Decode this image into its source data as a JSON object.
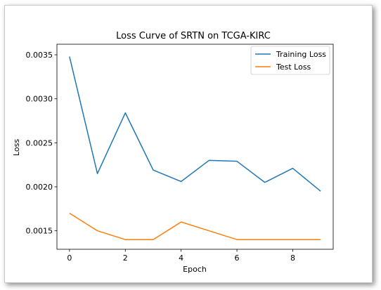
{
  "chart_data": {
    "type": "line",
    "title": "Loss Curve of SRTN on TCGA-KIRC",
    "xlabel": "Epoch",
    "ylabel": "Loss",
    "x": [
      0,
      1,
      2,
      3,
      4,
      5,
      6,
      7,
      8,
      9
    ],
    "xlim": [
      -0.45,
      9.45
    ],
    "ylim": [
      0.00129,
      0.00362
    ],
    "xticks": [
      0,
      2,
      4,
      6,
      8
    ],
    "xtick_labels": [
      "0",
      "2",
      "4",
      "6",
      "8"
    ],
    "yticks": [
      0.0015,
      0.002,
      0.0025,
      0.003,
      0.0035
    ],
    "ytick_labels": [
      "0.0015",
      "0.0020",
      "0.0025",
      "0.0030",
      "0.0035"
    ],
    "grid": false,
    "legend_position": "top-right",
    "series": [
      {
        "name": "Training Loss",
        "color": "#1f77b4",
        "values": [
          0.00348,
          0.00215,
          0.00284,
          0.00219,
          0.00206,
          0.0023,
          0.00229,
          0.00205,
          0.00221,
          0.00195
        ]
      },
      {
        "name": "Test Loss",
        "color": "#ff7f0e",
        "values": [
          0.0017,
          0.0015,
          0.0014,
          0.0014,
          0.0016,
          0.0015,
          0.0014,
          0.0014,
          0.0014,
          0.0014
        ]
      }
    ]
  }
}
